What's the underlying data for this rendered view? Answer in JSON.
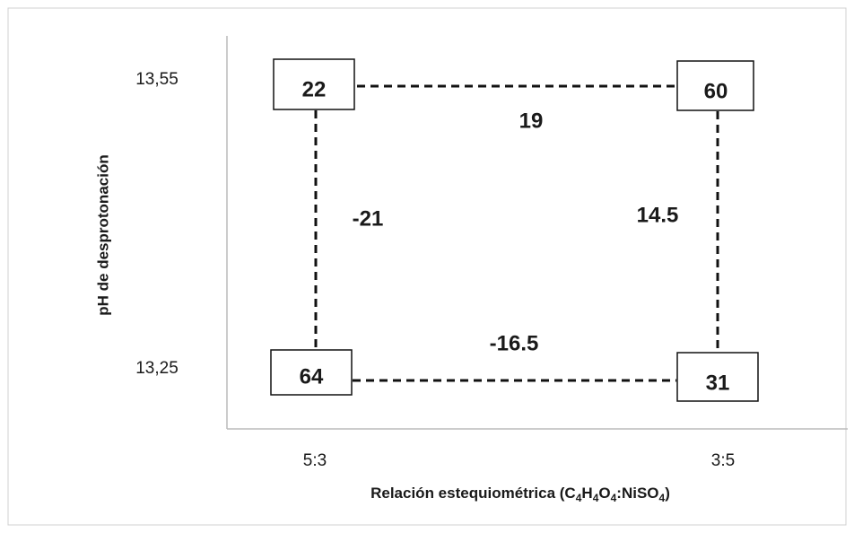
{
  "y_axis": {
    "title": "pH de desprotonación",
    "ticks": [
      "13,55",
      "13,25"
    ]
  },
  "x_axis": {
    "title_parts": [
      "Relación estequiométrica (C",
      "4",
      "H",
      "4",
      "O",
      "4",
      ":NiSO",
      "4",
      ")"
    ],
    "ticks": [
      "5:3",
      "3:5"
    ]
  },
  "corners": [
    22,
    60,
    64,
    31
  ],
  "effects": [
    19,
    -21,
    14.5,
    -16.5
  ]
}
